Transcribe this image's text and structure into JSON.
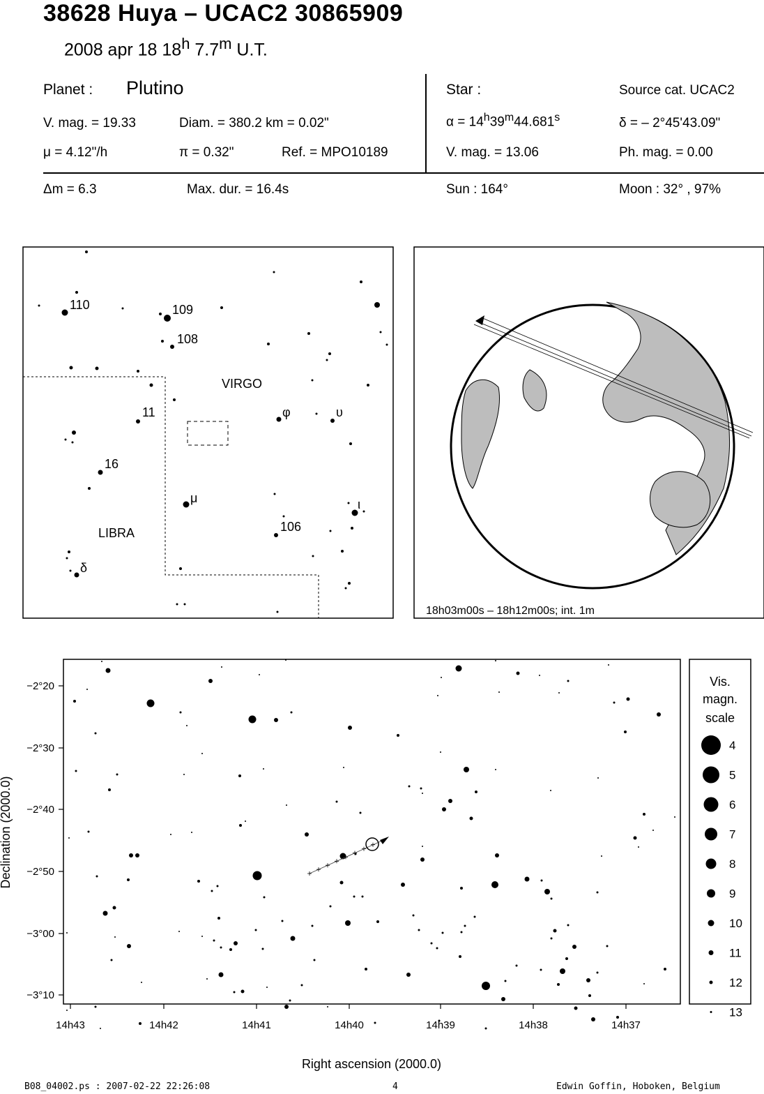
{
  "header": {
    "title": "38628 Huya  –  UCAC2 30865909",
    "date_prefix": "2008 apr 18  18",
    "date_h": "h",
    "date_mid": " 7.7",
    "date_m": "m",
    "date_suffix": " U.T."
  },
  "planet": {
    "label": "Planet :",
    "name": "Plutino",
    "vmag": "V. mag. = 19.33",
    "diam": "Diam. = 380.2 km = 0.02\"",
    "mu": "μ =  4.12\"/h",
    "pi": "π =  0.32\"",
    "ref": "Ref. = MPO10189",
    "dm": "Δm = 6.3",
    "maxdur": "Max. dur. = 16.4s"
  },
  "star": {
    "label": "Star :",
    "source": "Source cat.  UCAC2",
    "ra_prefix": "α = 14",
    "ra_h": "h",
    "ra_min": "39",
    "ra_m": "m",
    "ra_sec": "44.681",
    "ra_s": "s",
    "dec": "δ = – 2°45'43.09\"",
    "vmag": "V. mag. = 13.06",
    "phmag": "Ph. mag. =  0.00",
    "sun": "Sun : 164°",
    "moon": "Moon :  32° , 97%"
  },
  "finder": {
    "constellations": [
      "VIRGO",
      "LIBRA"
    ],
    "star_labels": [
      "110",
      "109",
      "108",
      "11",
      "16",
      "106",
      "φ",
      "υ",
      "μ",
      "ι",
      "δ"
    ]
  },
  "globe": {
    "caption": "18h03m00s – 18h12m00s; int.  1m"
  },
  "chart": {
    "ylabel": "Declination (2000.0)",
    "xlabel": "Right ascension (2000.0)",
    "xticks": [
      "14h43",
      "14h42",
      "14h41",
      "14h40",
      "14h39",
      "14h38",
      "14h37"
    ],
    "yticks": [
      "−2°20",
      "−2°30",
      "−2°40",
      "−2°50",
      "−3°00",
      "−3°10"
    ]
  },
  "scale": {
    "title_lines": [
      "Vis.",
      "magn.",
      "scale"
    ],
    "mags": [
      "4",
      "5",
      "6",
      "7",
      "8",
      "9",
      "10",
      "11",
      "12",
      "13"
    ]
  },
  "footer": {
    "file": "B08_04002.ps : 2007-02-22 22:26:08",
    "page": "4",
    "author": "Edwin Goffin, Hoboken, Belgium"
  }
}
